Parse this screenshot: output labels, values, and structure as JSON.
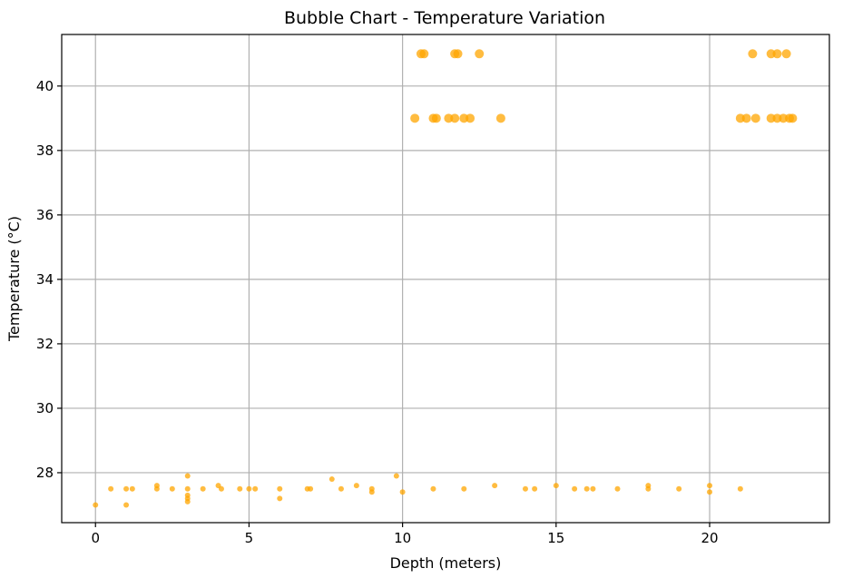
{
  "chart_data": {
    "type": "scatter",
    "title": "Bubble Chart - Temperature Variation",
    "xlabel": "Depth (meters)",
    "ylabel": "Temperature (°C)",
    "xlim": [
      -1.1,
      23.9
    ],
    "ylim": [
      26.45,
      41.6
    ],
    "xticks": [
      0,
      5,
      10,
      15,
      20
    ],
    "yticks": [
      28,
      30,
      32,
      34,
      36,
      38,
      40
    ],
    "grid": true,
    "marker_color": "#FFA500",
    "marker_alpha": 0.75,
    "series": [
      {
        "size": "small",
        "points": [
          [
            0,
            27.0
          ],
          [
            0.5,
            27.5
          ],
          [
            1.0,
            27.5
          ],
          [
            1.0,
            27.0
          ],
          [
            1.2,
            27.5
          ],
          [
            2.0,
            27.6
          ],
          [
            2.0,
            27.5
          ],
          [
            2.5,
            27.5
          ],
          [
            3.0,
            27.9
          ],
          [
            3.0,
            27.5
          ],
          [
            3.0,
            27.3
          ],
          [
            3.0,
            27.2
          ],
          [
            3.0,
            27.1
          ],
          [
            3.5,
            27.5
          ],
          [
            4.0,
            27.6
          ],
          [
            4.1,
            27.5
          ],
          [
            4.7,
            27.5
          ],
          [
            5.0,
            27.5
          ],
          [
            5.2,
            27.5
          ],
          [
            6.0,
            27.5
          ],
          [
            6.0,
            27.2
          ],
          [
            6.9,
            27.5
          ],
          [
            7.0,
            27.5
          ],
          [
            7.7,
            27.8
          ],
          [
            8.0,
            27.5
          ],
          [
            8.5,
            27.6
          ],
          [
            9.0,
            27.5
          ],
          [
            9.0,
            27.4
          ],
          [
            9.8,
            27.9
          ],
          [
            10.0,
            27.4
          ],
          [
            11.0,
            27.5
          ],
          [
            12.0,
            27.5
          ],
          [
            13.0,
            27.6
          ],
          [
            14.0,
            27.5
          ],
          [
            14.3,
            27.5
          ],
          [
            15.0,
            27.6
          ],
          [
            15.6,
            27.5
          ],
          [
            16.0,
            27.5
          ],
          [
            16.2,
            27.5
          ],
          [
            17.0,
            27.5
          ],
          [
            18.0,
            27.6
          ],
          [
            18.0,
            27.5
          ],
          [
            19.0,
            27.5
          ],
          [
            20.0,
            27.6
          ],
          [
            20.0,
            27.4
          ],
          [
            21.0,
            27.5
          ]
        ]
      },
      {
        "size": "large",
        "points": [
          [
            10.6,
            41.0
          ],
          [
            10.7,
            41.0
          ],
          [
            11.7,
            41.0
          ],
          [
            11.8,
            41.0
          ],
          [
            12.5,
            41.0
          ],
          [
            10.4,
            39.0
          ],
          [
            11.0,
            39.0
          ],
          [
            11.1,
            39.0
          ],
          [
            11.5,
            39.0
          ],
          [
            11.7,
            39.0
          ],
          [
            12.0,
            39.0
          ],
          [
            12.2,
            39.0
          ],
          [
            13.2,
            39.0
          ],
          [
            21.4,
            41.0
          ],
          [
            22.0,
            41.0
          ],
          [
            22.2,
            41.0
          ],
          [
            22.5,
            41.0
          ],
          [
            21.0,
            39.0
          ],
          [
            21.2,
            39.0
          ],
          [
            21.5,
            39.0
          ],
          [
            22.0,
            39.0
          ],
          [
            22.2,
            39.0
          ],
          [
            22.4,
            39.0
          ],
          [
            22.6,
            39.0
          ],
          [
            22.7,
            39.0
          ]
        ]
      }
    ]
  }
}
